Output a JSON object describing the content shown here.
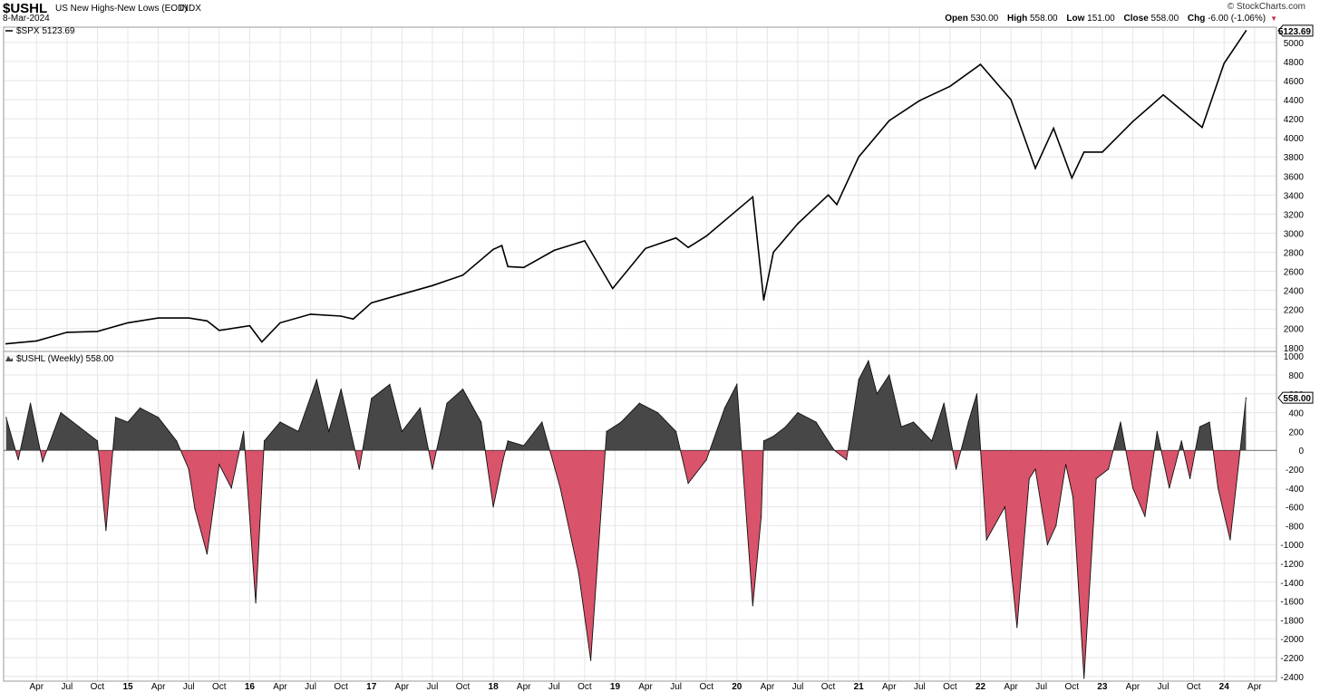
{
  "header": {
    "symbol": "$USHL",
    "name": "US New Highs-New Lows (EOD)",
    "exchange": "INDX",
    "date": "8-Mar-2024",
    "copyright": "© StockCharts.com",
    "open_label": "Open",
    "open": "530.00",
    "high_label": "High",
    "high": "558.00",
    "low_label": "Low",
    "low": "151.00",
    "close_label": "Close",
    "close": "558.00",
    "chg_label": "Chg",
    "chg": "-6.00 (-1.06%)"
  },
  "colors": {
    "positive": "#474747",
    "negative": "#d9536b",
    "line": "#000000",
    "grid": "#e6e6e6"
  },
  "chart_data": [
    {
      "type": "line",
      "legend": "$SPX 5123.69",
      "last_value_label": "5123.69",
      "ylim": [
        1760,
        5160
      ],
      "y_ticks": [
        1800,
        2000,
        2200,
        2400,
        2600,
        2800,
        3000,
        3200,
        3400,
        3600,
        3800,
        4000,
        4200,
        4400,
        4600,
        4800,
        5000
      ],
      "x": [
        2014.0,
        2014.25,
        2014.5,
        2014.75,
        2015.0,
        2015.25,
        2015.5,
        2015.65,
        2015.75,
        2016.0,
        2016.1,
        2016.25,
        2016.5,
        2016.75,
        2016.85,
        2017.0,
        2017.25,
        2017.5,
        2017.75,
        2018.0,
        2018.07,
        2018.12,
        2018.25,
        2018.5,
        2018.75,
        2018.98,
        2019.25,
        2019.5,
        2019.6,
        2019.75,
        2020.0,
        2020.13,
        2020.22,
        2020.3,
        2020.5,
        2020.75,
        2020.82,
        2021.0,
        2021.25,
        2021.5,
        2021.75,
        2022.0,
        2022.25,
        2022.45,
        2022.6,
        2022.75,
        2022.85,
        2023.0,
        2023.25,
        2023.5,
        2023.82,
        2024.0,
        2024.18
      ],
      "values": [
        1840,
        1870,
        1960,
        1970,
        2060,
        2110,
        2110,
        2080,
        1980,
        2030,
        1860,
        2060,
        2150,
        2130,
        2100,
        2270,
        2360,
        2450,
        2560,
        2830,
        2870,
        2650,
        2640,
        2820,
        2920,
        2420,
        2840,
        2950,
        2850,
        2970,
        3240,
        3380,
        2300,
        2800,
        3100,
        3400,
        3300,
        3800,
        4180,
        4390,
        4540,
        4770,
        4400,
        3680,
        4100,
        3580,
        3850,
        3850,
        4170,
        4450,
        4110,
        4780,
        5123
      ]
    },
    {
      "type": "area",
      "legend": "$USHL (Weekly) 558.00",
      "last_value_label": "558.00",
      "ylim": [
        -2450,
        1050
      ],
      "y_ticks": [
        1000,
        800,
        600,
        400,
        200,
        0,
        -200,
        -400,
        -600,
        -800,
        -1000,
        -1200,
        -1400,
        -1600,
        -1800,
        -2000,
        -2200,
        -2400
      ],
      "x": [
        2014.0,
        2014.1,
        2014.2,
        2014.3,
        2014.45,
        2014.6,
        2014.75,
        2014.82,
        2014.9,
        2015.0,
        2015.1,
        2015.25,
        2015.4,
        2015.5,
        2015.55,
        2015.65,
        2015.75,
        2015.85,
        2015.95,
        2016.05,
        2016.12,
        2016.25,
        2016.4,
        2016.55,
        2016.65,
        2016.75,
        2016.9,
        2017.0,
        2017.15,
        2017.25,
        2017.4,
        2017.5,
        2017.62,
        2017.75,
        2017.9,
        2018.0,
        2018.08,
        2018.12,
        2018.25,
        2018.4,
        2018.55,
        2018.7,
        2018.8,
        2018.93,
        2019.05,
        2019.2,
        2019.35,
        2019.5,
        2019.6,
        2019.75,
        2019.9,
        2020.0,
        2020.13,
        2020.2,
        2020.22,
        2020.3,
        2020.4,
        2020.5,
        2020.65,
        2020.8,
        2020.9,
        2021.0,
        2021.08,
        2021.15,
        2021.25,
        2021.35,
        2021.45,
        2021.6,
        2021.7,
        2021.8,
        2021.9,
        2021.97,
        2022.05,
        2022.2,
        2022.3,
        2022.4,
        2022.45,
        2022.55,
        2022.62,
        2022.7,
        2022.76,
        2022.85,
        2022.95,
        2023.05,
        2023.15,
        2023.25,
        2023.35,
        2023.45,
        2023.55,
        2023.65,
        2023.72,
        2023.8,
        2023.88,
        2023.95,
        2024.05,
        2024.18
      ],
      "values": [
        350,
        -100,
        500,
        -120,
        400,
        250,
        100,
        -850,
        350,
        300,
        450,
        350,
        100,
        -200,
        -620,
        -1100,
        -150,
        -400,
        200,
        -1620,
        100,
        300,
        200,
        750,
        200,
        650,
        -200,
        550,
        700,
        200,
        450,
        -200,
        500,
        650,
        300,
        -600,
        -100,
        100,
        50,
        300,
        -400,
        -1300,
        -2230,
        200,
        300,
        500,
        400,
        200,
        -350,
        -100,
        450,
        700,
        -1650,
        -700,
        100,
        150,
        250,
        400,
        300,
        0,
        -100,
        750,
        950,
        600,
        800,
        250,
        300,
        100,
        500,
        -200,
        300,
        600,
        -950,
        -600,
        -1880,
        -300,
        -200,
        -1000,
        -800,
        -150,
        -500,
        -2420,
        -300,
        -200,
        300,
        -400,
        -700,
        200,
        -400,
        100,
        -300,
        250,
        300,
        -400,
        -950,
        558
      ]
    }
  ],
  "x_axis": {
    "labels": [
      "Apr",
      "Jul",
      "Oct",
      "15",
      "Apr",
      "Jul",
      "Oct",
      "16",
      "Apr",
      "Jul",
      "Oct",
      "17",
      "Apr",
      "Jul",
      "Oct",
      "18",
      "Apr",
      "Jul",
      "Oct",
      "19",
      "Apr",
      "Jul",
      "Oct",
      "20",
      "Apr",
      "Jul",
      "Oct",
      "21",
      "Apr",
      "Jul",
      "Oct",
      "22",
      "Apr",
      "Jul",
      "Oct",
      "23",
      "Apr",
      "Jul",
      "Oct",
      "24",
      "Apr"
    ],
    "positions": [
      2014.25,
      2014.5,
      2014.75,
      2015.0,
      2015.25,
      2015.5,
      2015.75,
      2016.0,
      2016.25,
      2016.5,
      2016.75,
      2017.0,
      2017.25,
      2017.5,
      2017.75,
      2018.0,
      2018.25,
      2018.5,
      2018.75,
      2019.0,
      2019.25,
      2019.5,
      2019.75,
      2020.0,
      2020.25,
      2020.5,
      2020.75,
      2021.0,
      2021.25,
      2021.5,
      2021.75,
      2022.0,
      2022.25,
      2022.5,
      2022.75,
      2023.0,
      2023.25,
      2023.5,
      2023.75,
      2024.0,
      2024.25
    ]
  }
}
